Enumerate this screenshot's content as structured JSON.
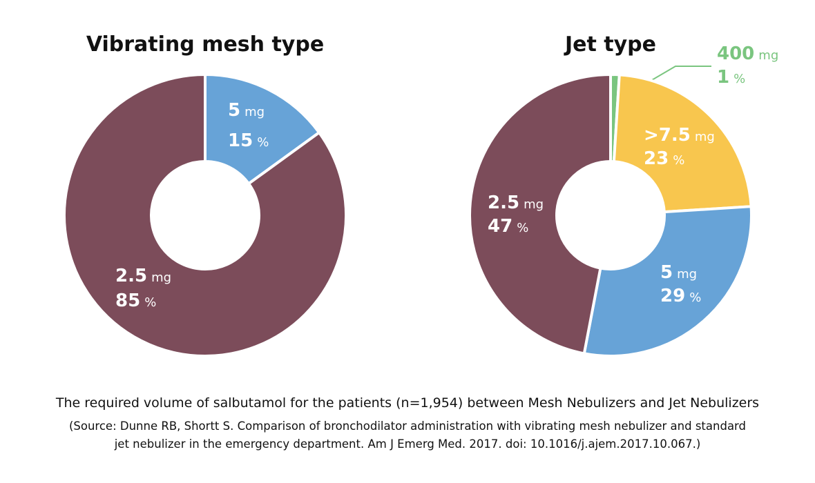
{
  "chart_data": [
    {
      "type": "pie",
      "title": "Vibrating mesh type",
      "slices": [
        {
          "value_label": "5",
          "unit": "mg",
          "percent": 15,
          "percent_unit": "%",
          "color": "#67a3d7"
        },
        {
          "value_label": "2.5",
          "unit": "mg",
          "percent": 85,
          "percent_unit": "%",
          "color": "#7c4c5a"
        }
      ]
    },
    {
      "type": "pie",
      "title": "Jet type",
      "slices": [
        {
          "value_label": "400",
          "unit": "mg",
          "percent": 1,
          "percent_unit": "%",
          "color": "#7ac57f"
        },
        {
          "value_label": ">7.5",
          "unit": "mg",
          "percent": 23,
          "percent_unit": "%",
          "color": "#f8c64e"
        },
        {
          "value_label": "5",
          "unit": "mg",
          "percent": 29,
          "percent_unit": "%",
          "color": "#67a3d7"
        },
        {
          "value_label": "2.5",
          "unit": "mg",
          "percent": 47,
          "percent_unit": "%",
          "color": "#7c4c5a"
        }
      ]
    }
  ],
  "caption": {
    "main": "The required volume of salbutamol for the patients (n=1,954) between Mesh Nebulizers and Jet Nebulizers",
    "source_line1": "(Source: Dunne RB, Shortt S. Comparison of bronchodilator administration with vibrating mesh nebulizer and standard",
    "source_line2": "jet nebulizer in the emergency department. Am J Emerg Med. 2017. doi: 10.1016/j.ajem.2017.10.067.)"
  }
}
